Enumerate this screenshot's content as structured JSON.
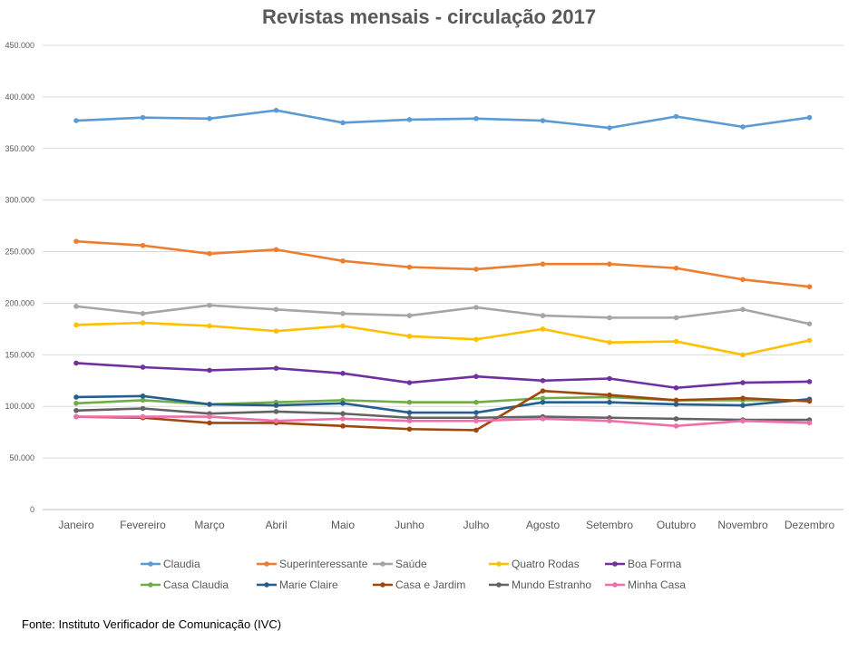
{
  "source_note": "Fonte: Instituto Verificador de Comunicação (IVC)",
  "chart_data": {
    "type": "line",
    "title": "Revistas mensais - circulação 2017",
    "xlabel": "",
    "ylabel": "",
    "ylim": [
      0,
      450000
    ],
    "y_ticks": [
      "0",
      "50.000",
      "100.000",
      "150.000",
      "200.000",
      "250.000",
      "300.000",
      "350.000",
      "400.000",
      "450.000"
    ],
    "grid": true,
    "legend_position": "bottom",
    "categories": [
      "Janeiro",
      "Fevereiro",
      "Março",
      "Abril",
      "Maio",
      "Junho",
      "Julho",
      "Agosto",
      "Setembro",
      "Outubro",
      "Novembro",
      "Dezembro"
    ],
    "series": [
      {
        "name": "Claudia",
        "color": "#5B9BD5",
        "values": [
          377000,
          380000,
          379000,
          387000,
          375000,
          378000,
          379000,
          377000,
          370000,
          381000,
          371000,
          380000
        ]
      },
      {
        "name": "Superinteressante",
        "color": "#ED7D31",
        "values": [
          260000,
          256000,
          248000,
          252000,
          241000,
          235000,
          233000,
          238000,
          238000,
          234000,
          223000,
          216000
        ]
      },
      {
        "name": "Saúde",
        "color": "#A5A5A5",
        "values": [
          197000,
          190000,
          198000,
          194000,
          190000,
          188000,
          196000,
          188000,
          186000,
          186000,
          194000,
          180000
        ]
      },
      {
        "name": "Quatro Rodas",
        "color": "#FFC000",
        "values": [
          179000,
          181000,
          178000,
          173000,
          178000,
          168000,
          165000,
          175000,
          162000,
          163000,
          150000,
          164000
        ]
      },
      {
        "name": "Boa Forma",
        "color": "#7030A0",
        "values": [
          142000,
          138000,
          135000,
          137000,
          132000,
          123000,
          129000,
          125000,
          127000,
          118000,
          123000,
          124000
        ]
      },
      {
        "name": "Casa Claudia",
        "color": "#70AD47",
        "values": [
          103000,
          106000,
          102000,
          104000,
          106000,
          104000,
          104000,
          108000,
          109000,
          106000,
          106000,
          106000
        ]
      },
      {
        "name": "Marie Claire",
        "color": "#255E91",
        "values": [
          109000,
          110000,
          102000,
          101000,
          103000,
          94000,
          94000,
          104000,
          104000,
          102000,
          101000,
          107000
        ]
      },
      {
        "name": "Casa e Jardim",
        "color": "#9E480E",
        "values": [
          90000,
          89000,
          84000,
          84000,
          81000,
          78000,
          77000,
          115000,
          111000,
          106000,
          108000,
          105000
        ]
      },
      {
        "name": "Mundo Estranho",
        "color": "#636363",
        "values": [
          96000,
          98000,
          93000,
          95000,
          93000,
          89000,
          89000,
          90000,
          89000,
          88000,
          87000,
          87000
        ]
      },
      {
        "name": "Minha Casa",
        "color": "#F06EAA",
        "values": [
          90000,
          90000,
          90000,
          86000,
          88000,
          86000,
          86000,
          88000,
          86000,
          81000,
          86000,
          84000
        ]
      }
    ]
  }
}
